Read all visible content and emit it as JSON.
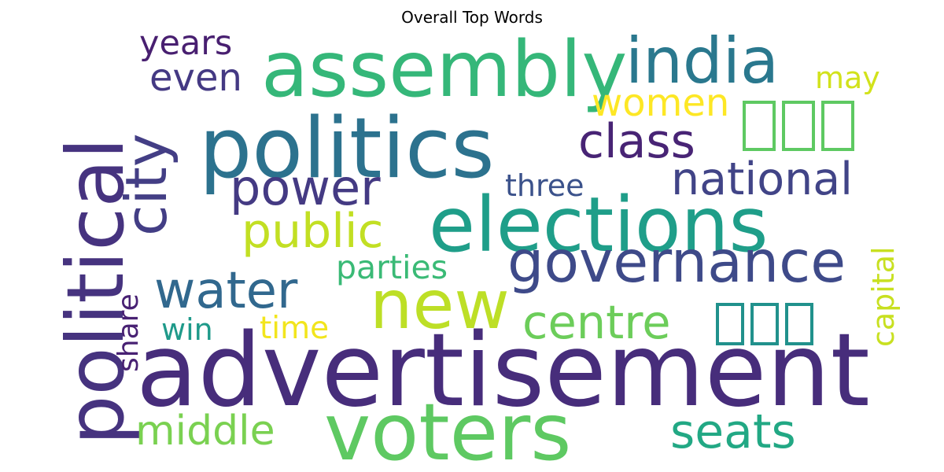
{
  "title": "Overall Top Words",
  "words": [
    {
      "text": "advertisement",
      "color": "#472d7b"
    },
    {
      "text": "politics",
      "color": "#2c728e"
    },
    {
      "text": "assembly",
      "color": "#35b779"
    },
    {
      "text": "elections",
      "color": "#1f9e89"
    },
    {
      "text": "political",
      "color": "#46337f"
    },
    {
      "text": "voters",
      "color": "#5ec962"
    },
    {
      "text": "new",
      "color": "#bddf26"
    },
    {
      "text": "india",
      "color": "#2a788e"
    },
    {
      "text": "governance",
      "color": "#3e4a89"
    },
    {
      "text": "city",
      "color": "#433e85"
    },
    {
      "text": "water",
      "color": "#31688e"
    },
    {
      "text": "centre",
      "color": "#6ccd5a"
    },
    {
      "text": "class",
      "color": "#482475"
    },
    {
      "text": "power",
      "color": "#443a83"
    },
    {
      "text": "public",
      "color": "#c2df23"
    },
    {
      "text": "seats",
      "color": "#22a884"
    },
    {
      "text": "middle",
      "color": "#7ad151"
    },
    {
      "text": "national",
      "color": "#414487"
    },
    {
      "text": "women",
      "color": "#fde725"
    },
    {
      "text": "even",
      "color": "#443983"
    },
    {
      "text": "years",
      "color": "#481f70"
    },
    {
      "text": "may",
      "color": "#d2e21b"
    },
    {
      "text": "three",
      "color": "#3b528b"
    },
    {
      "text": "parties",
      "color": "#3aba76"
    },
    {
      "text": "time",
      "color": "#f2e51d"
    },
    {
      "text": "win",
      "color": "#1f9a8a"
    },
    {
      "text": "share",
      "color": "#482173"
    },
    {
      "text": "capital",
      "color": "#c8e020"
    }
  ],
  "glyph_boxes": [
    {
      "count": 3,
      "color": "#5ec962"
    },
    {
      "count": 3,
      "color": "#21918c"
    }
  ]
}
